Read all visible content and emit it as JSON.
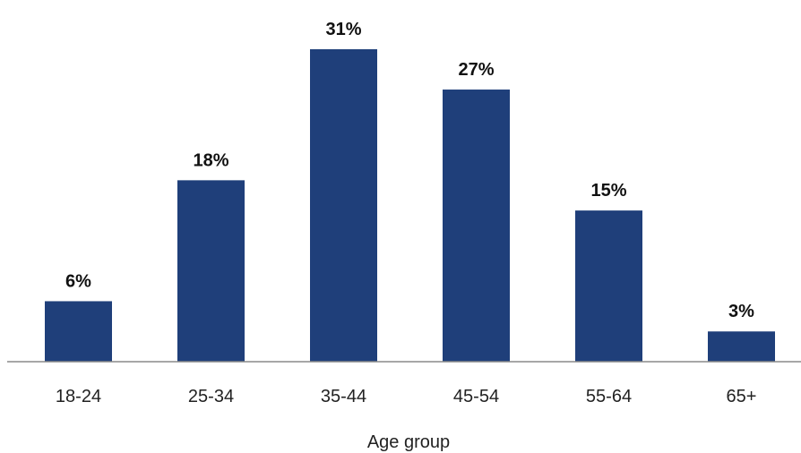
{
  "chart_data": {
    "type": "bar",
    "categories": [
      "18-24",
      "25-34",
      "35-44",
      "45-54",
      "55-64",
      "65+"
    ],
    "values": [
      6,
      18,
      31,
      27,
      15,
      3
    ],
    "value_labels": [
      "6%",
      "18%",
      "31%",
      "27%",
      "15%",
      "3%"
    ],
    "title": "",
    "xlabel": "Age group",
    "ylabel": "",
    "ylim": [
      0,
      31
    ],
    "grid": false,
    "legend": "none",
    "bar_color": "#1f3f7a"
  }
}
